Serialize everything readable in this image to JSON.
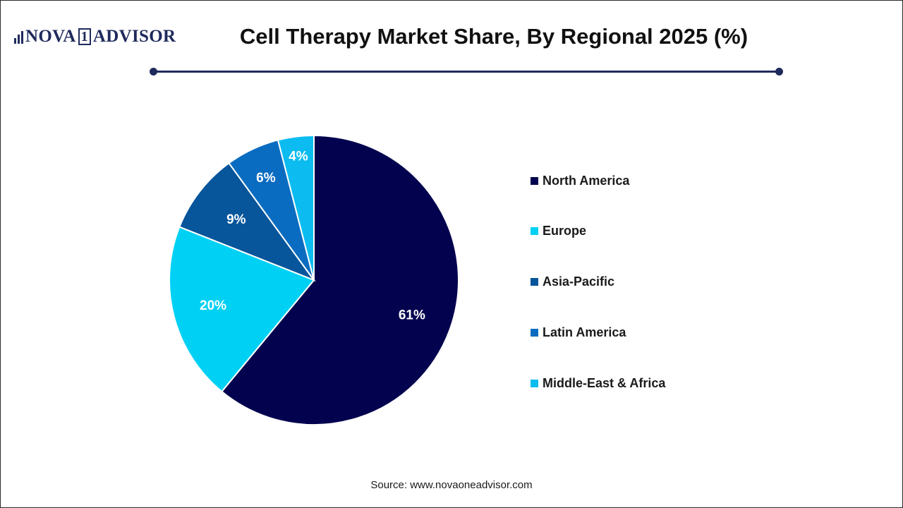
{
  "brand": {
    "name_part1": "NOVA",
    "name_one": "1",
    "name_part2": "ADVISOR"
  },
  "chart_data": {
    "type": "pie",
    "title": "Cell Therapy Market Share, By Regional 2025 (%)",
    "categories": [
      "North America",
      "Europe",
      "Asia-Pacific",
      "Latin America",
      "Middle-East & Africa"
    ],
    "values": [
      61,
      20,
      9,
      6,
      4
    ],
    "labels": [
      "61%",
      "20%",
      "9%",
      "6%",
      "4%"
    ],
    "colors": [
      "#02024f",
      "#00d1f4",
      "#07559a",
      "#0a6cc0",
      "#0cbcf0"
    ],
    "legend_position": "right",
    "start": "12 o'clock",
    "direction": "clockwise"
  },
  "legend": [
    {
      "label": "North America",
      "color": "#02024f"
    },
    {
      "label": "Europe",
      "color": "#00d1f4"
    },
    {
      "label": "Asia-Pacific",
      "color": "#07559a"
    },
    {
      "label": "Latin America",
      "color": "#0a6cc0"
    },
    {
      "label": "Middle-East & Africa",
      "color": "#0cbcf0"
    }
  ],
  "source": "Source: www.novaoneadvisor.com"
}
